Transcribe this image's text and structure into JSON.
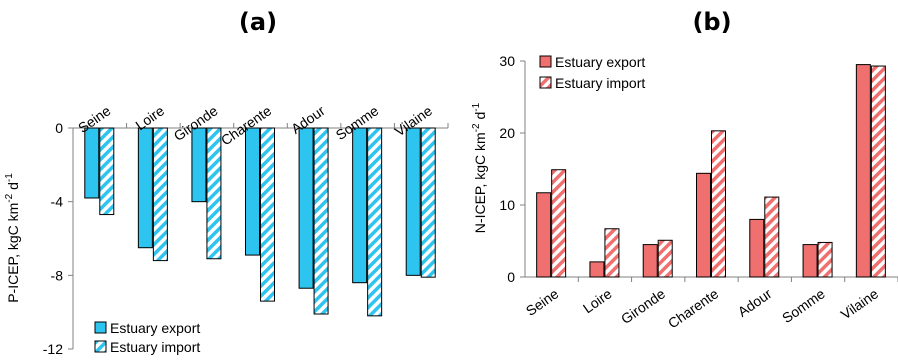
{
  "chart_data": [
    {
      "panel_label": "(a)",
      "type": "bar",
      "categories": [
        "Seine",
        "Loire",
        "Gironde",
        "Charente",
        "Adour",
        "Somme",
        "Vilaine"
      ],
      "series": [
        {
          "name": "Estuary export",
          "values": [
            -3.8,
            -6.5,
            -4.0,
            -6.9,
            -8.7,
            -8.4,
            -8.0
          ],
          "color": "#2EC4F0",
          "pattern": "solid"
        },
        {
          "name": "Estuary import",
          "values": [
            -4.7,
            -7.2,
            -7.1,
            -9.4,
            -10.1,
            -10.2,
            -8.1
          ],
          "color": "#2EC4F0",
          "pattern": "hatched"
        }
      ],
      "ylabel_main": "P-ICEP, kgC km",
      "ylabel_sup1": "-2",
      "ylabel_mid": " d",
      "ylabel_sup2": "-1",
      "ylim": [
        -12,
        0
      ],
      "yticks": [
        "0",
        "-4",
        "-8",
        "-12"
      ],
      "legend_position": "bottom-left",
      "category_position": "top"
    },
    {
      "panel_label": "(b)",
      "type": "bar",
      "categories": [
        "Seine",
        "Loire",
        "Gironde",
        "Charente",
        "Adour",
        "Somme",
        "Vilaine"
      ],
      "series": [
        {
          "name": "Estuary export",
          "values": [
            11.7,
            2.1,
            4.5,
            14.4,
            8.0,
            4.5,
            29.5
          ],
          "color": "#F07070",
          "pattern": "solid"
        },
        {
          "name": "Estuary import",
          "values": [
            14.9,
            6.7,
            5.1,
            20.3,
            11.1,
            4.8,
            29.3
          ],
          "color": "#F07070",
          "pattern": "hatched"
        }
      ],
      "ylabel_main": "N-ICEP, kgC km",
      "ylabel_sup1": "-2",
      "ylabel_mid": " d",
      "ylabel_sup2": "-1",
      "ylim": [
        0,
        30
      ],
      "yticks": [
        "0",
        "10",
        "20",
        "30"
      ],
      "legend_position": "top-left",
      "category_position": "bottom"
    }
  ]
}
